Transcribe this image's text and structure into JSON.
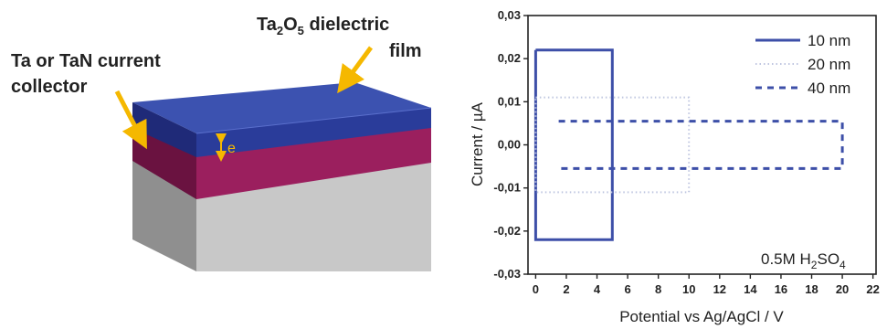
{
  "diagram": {
    "label_film_prefix": "Ta",
    "label_film_sub1": "2",
    "label_film_mid": "O",
    "label_film_sub2": "5",
    "label_film_suffix": " dielectric",
    "label_film_line2": "film",
    "label_collector_line1": "Ta or TaN current",
    "label_collector_line2": "collector",
    "thickness_label": "e",
    "colors": {
      "film_top": "#3c52b0",
      "film_front": "#2a3c9a",
      "film_side": "#1f2a78",
      "collector_front": "#9b1f5e",
      "collector_side": "#6a1240",
      "substrate_front": "#c8c8c8",
      "substrate_side": "#8c8c8c",
      "arrow": "#f5b800"
    }
  },
  "chart_data": {
    "type": "line",
    "xlabel": "Potential vs Ag/AgCl / V",
    "ylabel": "Current / µA",
    "xlim": [
      -0.5,
      22.2
    ],
    "ylim": [
      -0.03,
      0.03
    ],
    "xticks": [
      "0",
      "2",
      "4",
      "6",
      "8",
      "10",
      "12",
      "14",
      "16",
      "18",
      "20",
      "22"
    ],
    "yticks": [
      "0,03",
      "0,02",
      "0,01",
      "0,00",
      "-0,01",
      "-0,02",
      "-0,03"
    ],
    "grid": false,
    "legend_position": "top-right",
    "annotation": {
      "prefix": "0.5M H",
      "sub1": "2",
      "mid": "SO",
      "sub2": "4"
    },
    "series": [
      {
        "name": "10 nm",
        "style": "solid",
        "color": "#3d4fa8",
        "x": [
          0,
          5,
          5,
          0,
          0
        ],
        "y": [
          0.022,
          0.022,
          -0.022,
          -0.022,
          0.022
        ]
      },
      {
        "name": "20 nm",
        "style": "dotted",
        "color": "#bfc6e0",
        "x": [
          0,
          10,
          10,
          0,
          0
        ],
        "y": [
          0.011,
          0.011,
          -0.011,
          -0.011,
          0.011
        ]
      },
      {
        "name": "40 nm",
        "style": "dashed",
        "color": "#3d4fa8",
        "x": [
          1.5,
          20,
          20,
          1.5
        ],
        "y": [
          0.0055,
          0.0055,
          -0.0055,
          -0.0055
        ]
      }
    ]
  }
}
